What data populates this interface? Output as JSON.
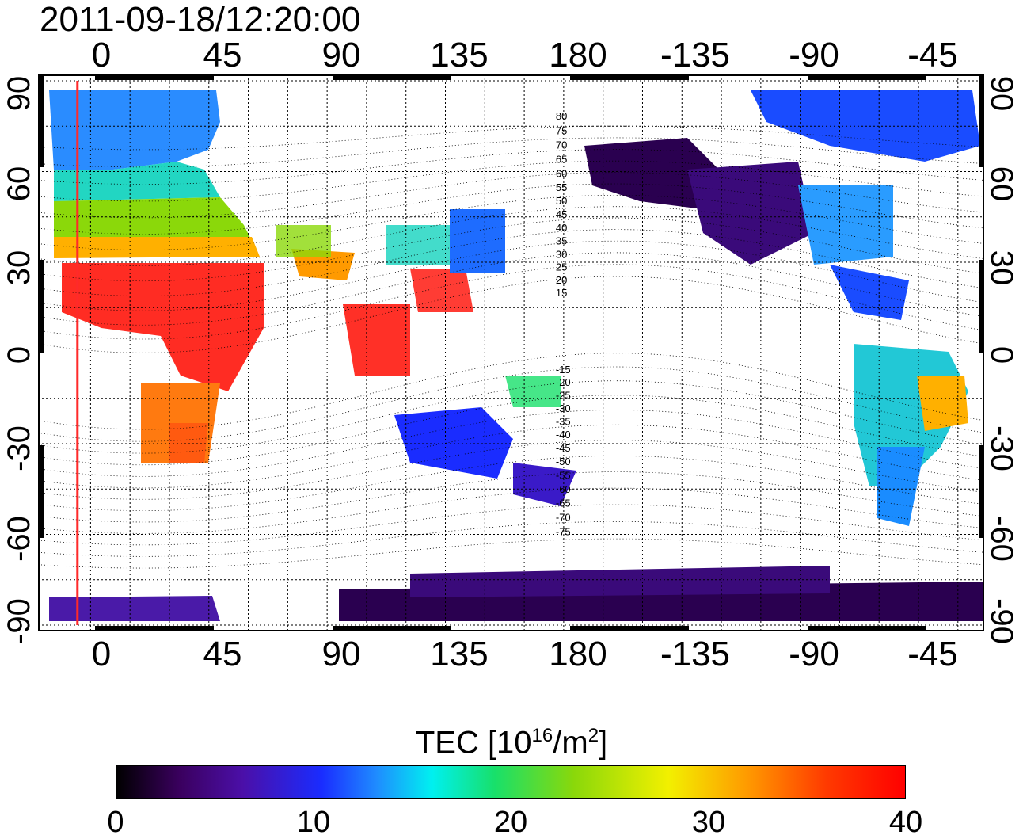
{
  "title": "2011-09-18/12:20:00",
  "top_axis_ticks": [
    "0",
    "45",
    "90",
    "135",
    "180",
    "-135",
    "-90",
    "-45"
  ],
  "bottom_axis_ticks": [
    "0",
    "45",
    "90",
    "135",
    "180",
    "-135",
    "-90",
    "-45"
  ],
  "left_axis_ticks": [
    "90",
    "60",
    "30",
    "0",
    "-30",
    "-60",
    "-90"
  ],
  "right_axis_ticks": [
    "90",
    "60",
    "30",
    "0",
    "-30",
    "-60",
    "-90"
  ],
  "contour_labels": [
    "80",
    "75",
    "70",
    "65",
    "60",
    "55",
    "50",
    "45",
    "40",
    "35",
    "30",
    "25",
    "20",
    "15",
    "-15",
    "-20",
    "-25",
    "-30",
    "-35",
    "-40",
    "-45",
    "-50",
    "-55",
    "-60",
    "-65",
    "-70",
    "-75"
  ],
  "colorbar": {
    "label": "TEC  [10",
    "label_sup": "16",
    "label_unit": "/m",
    "label_unit_sup": "2",
    "label_end": "]",
    "ticks": [
      "0",
      "10",
      "20",
      "30",
      "40"
    ],
    "min": 0,
    "max": 40
  },
  "map": {
    "projection": "equirectangular",
    "central_longitude": 180,
    "lon_range": [
      -20,
      340
    ],
    "lat_range": [
      -90,
      90
    ],
    "grid_step_deg": 15,
    "marker_longitude_deg": -5,
    "marker_color": "#ff2a2a"
  }
}
